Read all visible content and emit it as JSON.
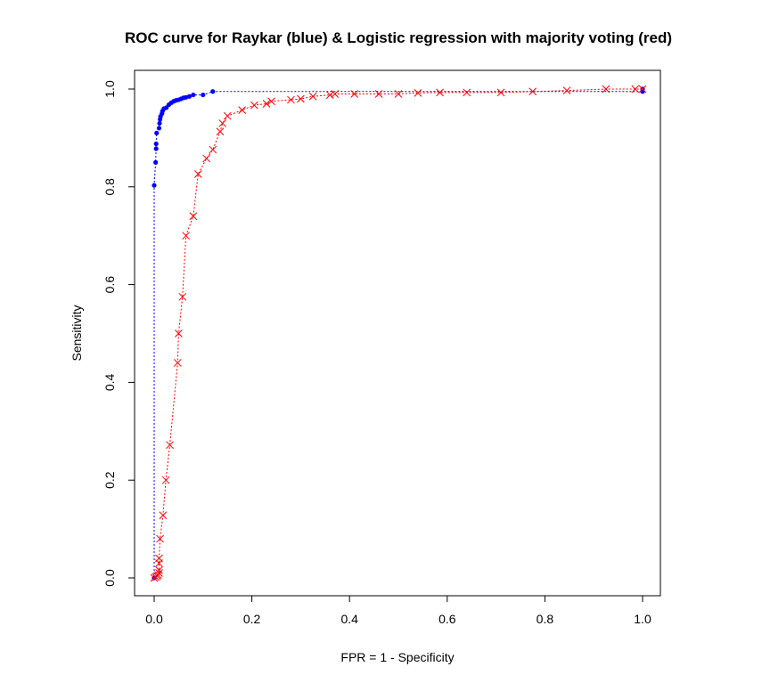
{
  "chart_data": {
    "type": "line",
    "title": "ROC curve for Raykar (blue) & Logistic regression with majority voting (red)",
    "xlabel": "FPR = 1 - Specificity",
    "ylabel": "Sensitivity",
    "xlim": [
      0,
      1
    ],
    "ylim": [
      0,
      1
    ],
    "x_ticks": [
      "0.0",
      "0.2",
      "0.4",
      "0.6",
      "0.8",
      "1.0"
    ],
    "y_ticks": [
      "0.0",
      "0.2",
      "0.4",
      "0.6",
      "0.8",
      "1.0"
    ],
    "grid": false,
    "legend": "none",
    "series": [
      {
        "color": "#0000ff",
        "line_style": "dotted",
        "marker": "dot",
        "points": [
          [
            0,
            0
          ],
          [
            0,
            0.803
          ],
          [
            0.003,
            0.85
          ],
          [
            0.004,
            0.878
          ],
          [
            0.004,
            0.888
          ],
          [
            0.005,
            0.91
          ],
          [
            0.01,
            0.92
          ],
          [
            0.011,
            0.93
          ],
          [
            0.012,
            0.938
          ],
          [
            0.013,
            0.944
          ],
          [
            0.016,
            0.95
          ],
          [
            0.017,
            0.955
          ],
          [
            0.02,
            0.96
          ],
          [
            0.025,
            0.962
          ],
          [
            0.03,
            0.968
          ],
          [
            0.035,
            0.972
          ],
          [
            0.04,
            0.975
          ],
          [
            0.045,
            0.977
          ],
          [
            0.05,
            0.978
          ],
          [
            0.055,
            0.98
          ],
          [
            0.06,
            0.982
          ],
          [
            0.065,
            0.983
          ],
          [
            0.072,
            0.985
          ],
          [
            0.08,
            0.988
          ],
          [
            0.1,
            0.988
          ],
          [
            0.12,
            0.995
          ],
          [
            1.0,
            0.995
          ],
          [
            1.0,
            1.0
          ]
        ]
      },
      {
        "color": "#ff0000",
        "line_style": "dotted",
        "marker": "x",
        "points": [
          [
            0,
            0
          ],
          [
            0.003,
            0.002
          ],
          [
            0.006,
            0.004
          ],
          [
            0.008,
            0.006
          ],
          [
            0.01,
            0.01
          ],
          [
            0.01,
            0.016
          ],
          [
            0.01,
            0.03
          ],
          [
            0.01,
            0.04
          ],
          [
            0.012,
            0.08
          ],
          [
            0.018,
            0.128
          ],
          [
            0.024,
            0.2
          ],
          [
            0.032,
            0.272
          ],
          [
            0.048,
            0.44
          ],
          [
            0.05,
            0.5
          ],
          [
            0.058,
            0.575
          ],
          [
            0.065,
            0.7
          ],
          [
            0.08,
            0.74
          ],
          [
            0.09,
            0.826
          ],
          [
            0.107,
            0.858
          ],
          [
            0.12,
            0.876
          ],
          [
            0.135,
            0.913
          ],
          [
            0.14,
            0.93
          ],
          [
            0.15,
            0.945
          ],
          [
            0.18,
            0.957
          ],
          [
            0.205,
            0.967
          ],
          [
            0.23,
            0.97
          ],
          [
            0.24,
            0.975
          ],
          [
            0.28,
            0.978
          ],
          [
            0.3,
            0.98
          ],
          [
            0.325,
            0.985
          ],
          [
            0.36,
            0.988
          ],
          [
            0.37,
            0.99
          ],
          [
            0.41,
            0.99
          ],
          [
            0.46,
            0.99
          ],
          [
            0.5,
            0.99
          ],
          [
            0.54,
            0.992
          ],
          [
            0.585,
            0.993
          ],
          [
            0.64,
            0.993
          ],
          [
            0.71,
            0.993
          ],
          [
            0.775,
            0.995
          ],
          [
            0.845,
            0.997
          ],
          [
            0.925,
            1.0
          ],
          [
            0.985,
            1.0
          ],
          [
            1.0,
            1.0
          ]
        ]
      }
    ]
  }
}
